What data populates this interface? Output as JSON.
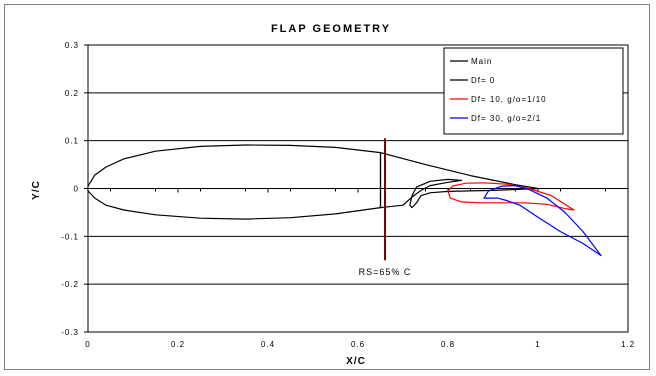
{
  "chart_data": {
    "type": "line",
    "title": "FLAP GEOMETRY",
    "xlabel": "X/C",
    "ylabel": "Y/C",
    "xlim": [
      0,
      1.2
    ],
    "ylim": [
      -0.3,
      0.3
    ],
    "xticks": [
      0,
      0.2,
      0.4,
      0.6,
      0.8,
      1,
      1.2
    ],
    "xtick_labels": [
      "0",
      "0.2",
      "0.4",
      "0.6",
      "0.8",
      "1",
      "1.2"
    ],
    "yticks": [
      0.3,
      0.2,
      0.1,
      0,
      -0.1,
      -0.2,
      -0.3
    ],
    "ytick_labels": [
      "0.3",
      "0.2",
      "0.1",
      "0",
      "-0.1",
      "-0.2",
      "-0.3"
    ],
    "grid": "horizontal",
    "legend_position": "top-right",
    "series": [
      {
        "name": "Main",
        "color": "#000000",
        "closed": true,
        "x": [
          0.65,
          0.55,
          0.45,
          0.35,
          0.25,
          0.15,
          0.08,
          0.04,
          0.015,
          0.0,
          0.0,
          0.015,
          0.04,
          0.08,
          0.15,
          0.25,
          0.35,
          0.45,
          0.55,
          0.65
        ],
        "y": [
          -0.04,
          -0.053,
          -0.061,
          -0.064,
          -0.062,
          -0.055,
          -0.045,
          -0.035,
          -0.02,
          -0.005,
          0.005,
          0.028,
          0.045,
          0.062,
          0.078,
          0.088,
          0.091,
          0.09,
          0.086,
          0.075
        ]
      },
      {
        "name": "Df= 0",
        "color": "#000000",
        "closed": true,
        "x": [
          0.65,
          0.75,
          0.85,
          0.95,
          1.0,
          0.95,
          0.9,
          0.85,
          0.8,
          0.76,
          0.74,
          0.73,
          0.72,
          0.715,
          0.72,
          0.73,
          0.76,
          0.8,
          0.83,
          0.8,
          0.76,
          0.74,
          0.72,
          0.7,
          0.65
        ],
        "y": [
          0.075,
          0.05,
          0.027,
          0.008,
          0.0,
          -0.002,
          -0.004,
          -0.005,
          -0.006,
          -0.009,
          -0.015,
          -0.03,
          -0.04,
          -0.035,
          -0.015,
          0.003,
          0.015,
          0.019,
          0.017,
          0.013,
          0.006,
          -0.004,
          -0.018,
          -0.035,
          -0.04
        ]
      },
      {
        "name": "Df= 10, g/o=1/10",
        "color": "#ff0000",
        "closed": true,
        "x": [
          0.8,
          0.81,
          0.84,
          0.88,
          0.93,
          0.98,
          1.03,
          1.08,
          1.06,
          1.02,
          0.97,
          0.92,
          0.87,
          0.83,
          0.805,
          0.8
        ],
        "y": [
          -0.005,
          0.005,
          0.011,
          0.012,
          0.009,
          0.0,
          -0.015,
          -0.045,
          -0.042,
          -0.033,
          -0.03,
          -0.03,
          -0.03,
          -0.028,
          -0.02,
          -0.005
        ]
      },
      {
        "name": "Df= 30, g/o=2/1",
        "color": "#0000ff",
        "closed": true,
        "x": [
          0.88,
          0.89,
          0.92,
          0.95,
          0.98,
          1.02,
          1.06,
          1.1,
          1.14,
          1.1,
          1.05,
          1.0,
          0.96,
          0.93,
          0.91,
          0.89,
          0.88
        ],
        "y": [
          -0.02,
          -0.005,
          0.005,
          0.006,
          -0.002,
          -0.02,
          -0.05,
          -0.09,
          -0.14,
          -0.115,
          -0.09,
          -0.06,
          -0.035,
          -0.025,
          -0.02,
          -0.02,
          -0.02
        ]
      }
    ],
    "annotations": [
      {
        "type": "vline",
        "x": 0.66,
        "y_range": [
          -0.15,
          0.105
        ],
        "color": "#800000"
      },
      {
        "type": "text",
        "text": "RS=65% C",
        "x": 0.66,
        "y": -0.175
      }
    ]
  }
}
